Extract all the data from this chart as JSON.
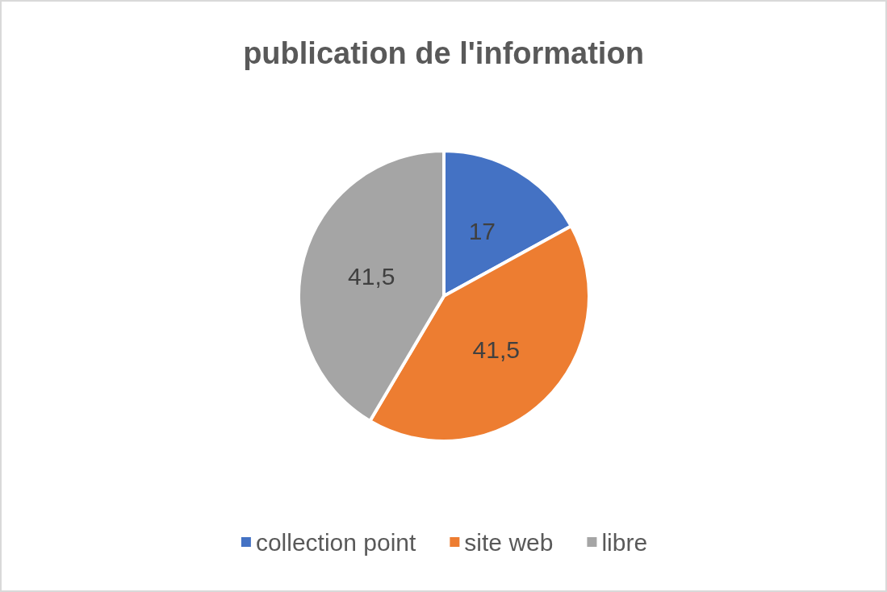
{
  "chart_data": {
    "type": "pie",
    "title": "publication de l'information",
    "categories": [
      "collection point",
      "site web",
      "libre"
    ],
    "values": [
      17,
      41.5,
      41.5
    ],
    "colors": [
      "#4472c4",
      "#ed7d31",
      "#a5a5a5"
    ],
    "value_labels": [
      "17",
      "41,5",
      "41,5"
    ],
    "legend": "bottom"
  }
}
